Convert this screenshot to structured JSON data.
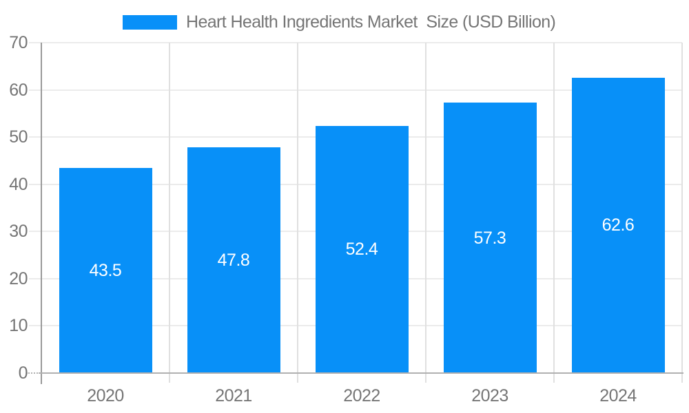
{
  "chart_data": {
    "type": "bar",
    "title": "Heart Health Ingredients Market  Size (USD Billion)",
    "categories": [
      "2020",
      "2021",
      "2022",
      "2023",
      "2024"
    ],
    "values": [
      43.5,
      47.8,
      52.4,
      57.3,
      62.6
    ],
    "value_labels": [
      "43.5",
      "47.8",
      "52.4",
      "57.3",
      "62.6"
    ],
    "xlabel": "",
    "ylabel": "",
    "ylim": [
      0,
      70
    ],
    "ytick_step": 10,
    "ytick_labels": [
      "0",
      "10",
      "20",
      "30",
      "40",
      "50",
      "60",
      "70"
    ],
    "grid": true,
    "legend_position": "top",
    "value_label_position": "center-of-bar",
    "colors": {
      "bar": "#0890F8",
      "text": "#757575",
      "value_label": "#ffffff",
      "gridline_h": "#ebebeb",
      "gridline_v": "#e0e0e0",
      "x_axis_line": "#b0b0b0",
      "y_axis_line": "#999999",
      "background": "#ffffff"
    }
  }
}
